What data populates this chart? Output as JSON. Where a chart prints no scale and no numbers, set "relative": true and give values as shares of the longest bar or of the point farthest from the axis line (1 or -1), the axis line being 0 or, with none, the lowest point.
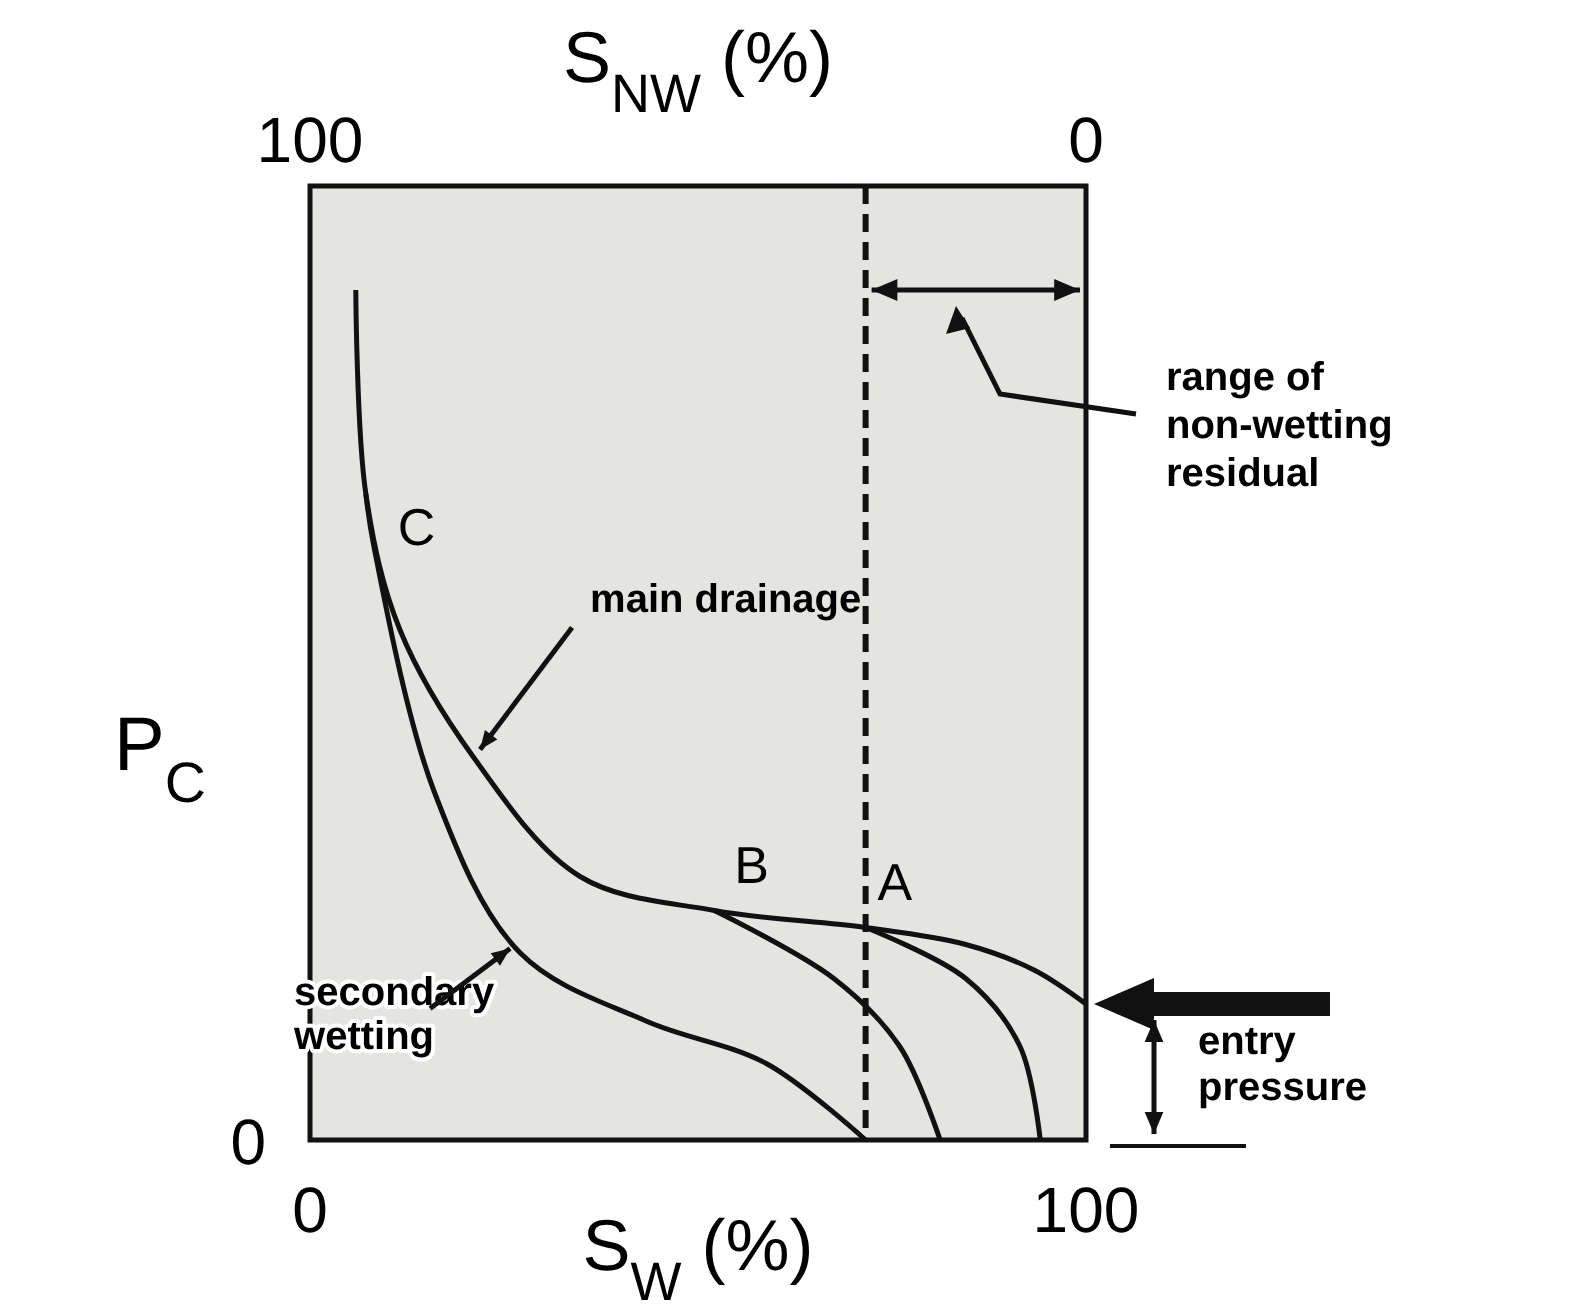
{
  "chart_data": {
    "type": "line",
    "relative": true,
    "xlabel": "S$_{W}$ (%)",
    "x2label": "S$_{NW}$ (%)",
    "ylabel": "P$_{C}$",
    "xlim": [
      0,
      100
    ],
    "xticks": [
      0,
      100
    ],
    "x2lim": [
      100,
      0
    ],
    "x2ticks": [
      100,
      0
    ],
    "series": [
      {
        "color": "#111111",
        "x": [
          5.9,
          7.2,
          11.6,
          21.1,
          34.8,
          52.1,
          71.6,
          84.5,
          93.3,
          100
        ],
        "values": [
          1.0,
          0.76,
          0.6,
          0.45,
          0.31,
          0.27,
          0.25,
          0.23,
          0.2,
          0.16
        ]
      },
      {
        "color": "#111111",
        "x": [
          7.2,
          8.2,
          16.0,
          27.1,
          43.3,
          58.8,
          71.6
        ],
        "values": [
          0.76,
          0.7,
          0.41,
          0.22,
          0.14,
          0.09,
          0
        ]
      },
      {
        "color": "#111111",
        "x": [
          52.1,
          67.5,
          76.0,
          81.2
        ],
        "values": [
          0.27,
          0.19,
          0.11,
          0
        ]
      },
      {
        "color": "#111111",
        "x": [
          71.6,
          84.5,
          91.5,
          94.1
        ],
        "values": [
          0.25,
          0.19,
          0.11,
          0
        ]
      }
    ],
    "ref_lines": [
      {
        "axis": "x",
        "value": 71.6,
        "color": "#111111",
        "line_style": "dashed"
      }
    ],
    "annotations": [
      {
        "text": "A",
        "x": 71.6,
        "y": 0.25
      },
      {
        "text": "B",
        "x": 52.1,
        "y": 0.27
      },
      {
        "text": "C",
        "x": 8.2,
        "y": 0.7
      },
      {
        "text": "main drainage",
        "x": 21.4,
        "y": 0.45
      },
      {
        "text": "secondary wetting",
        "x": 26.3,
        "y": 0.23
      },
      "range of non-wetting residual",
      {
        "text": "entry pressure",
        "x": 100,
        "y": 0.16
      },
      "0"
    ]
  }
}
